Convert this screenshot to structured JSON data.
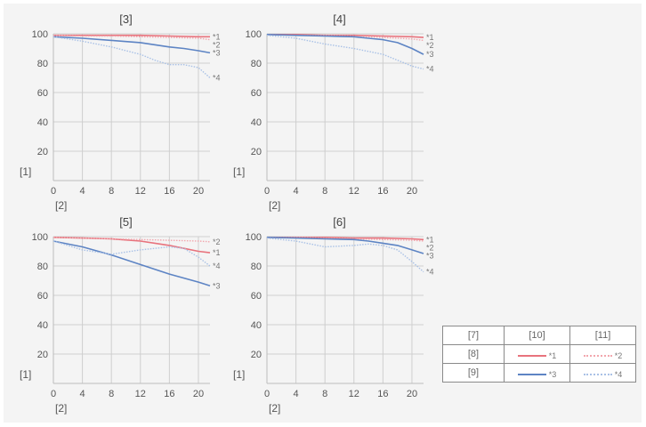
{
  "colors": {
    "s1": "#e8737d",
    "s2": "#f2a6ad",
    "s3": "#5d84c4",
    "s4": "#a9c1e6",
    "grid": "#cfcfcf",
    "frame": "#bdbdbd",
    "text": "#555555"
  },
  "chart_data": [
    {
      "type": "line",
      "title": "[3]",
      "ylabel": "[1]",
      "xlabel": "[2]",
      "xlim": [
        0,
        21.6
      ],
      "ylim": [
        0,
        100
      ],
      "xticks": [
        "0",
        "4",
        "8",
        "12",
        "16",
        "20"
      ],
      "yticks": [
        "20",
        "40",
        "60",
        "80",
        "100"
      ],
      "grid": true,
      "series": [
        {
          "name": "*1",
          "style": "solid",
          "color": "s1",
          "x": [
            0,
            4,
            8,
            12,
            16,
            20,
            21.6
          ],
          "y": [
            99,
            99,
            99,
            99,
            98.5,
            98,
            98
          ]
        },
        {
          "name": "*2",
          "style": "dotted",
          "color": "s2",
          "x": [
            0,
            4,
            8,
            12,
            16,
            20,
            21.6
          ],
          "y": [
            99,
            98.5,
            98.5,
            98,
            97.5,
            97,
            96
          ]
        },
        {
          "name": "*3",
          "style": "solid",
          "color": "s3",
          "x": [
            0,
            4,
            8,
            12,
            16,
            18,
            20,
            21.6
          ],
          "y": [
            98,
            97,
            95.5,
            94,
            91,
            90,
            88.5,
            87
          ]
        },
        {
          "name": "*4",
          "style": "dotted",
          "color": "s4",
          "x": [
            0,
            4,
            8,
            12,
            14,
            16,
            18,
            20,
            21.6
          ],
          "y": [
            98,
            95,
            91,
            86,
            82,
            79,
            79,
            77,
            70
          ]
        }
      ]
    },
    {
      "type": "line",
      "title": "[4]",
      "ylabel": "[1]",
      "xlabel": "[2]",
      "xlim": [
        0,
        21.6
      ],
      "ylim": [
        0,
        100
      ],
      "xticks": [
        "0",
        "4",
        "8",
        "12",
        "16",
        "20"
      ],
      "yticks": [
        "20",
        "40",
        "60",
        "80",
        "100"
      ],
      "grid": true,
      "series": [
        {
          "name": "*1",
          "style": "solid",
          "color": "s1",
          "x": [
            0,
            4,
            8,
            12,
            16,
            20,
            21.6
          ],
          "y": [
            99.5,
            99.5,
            99,
            99,
            98.5,
            98,
            97.5
          ]
        },
        {
          "name": "*2",
          "style": "dotted",
          "color": "s2",
          "x": [
            0,
            4,
            8,
            12,
            16,
            20,
            21.6
          ],
          "y": [
            99.5,
            99,
            99,
            98.5,
            97.5,
            96.5,
            95.5
          ]
        },
        {
          "name": "*3",
          "style": "solid",
          "color": "s3",
          "x": [
            0,
            4,
            8,
            12,
            14,
            16,
            18,
            20,
            21.6
          ],
          "y": [
            99.5,
            99,
            98.5,
            98,
            97,
            96,
            94,
            90,
            86
          ]
        },
        {
          "name": "*4",
          "style": "dotted",
          "color": "s4",
          "x": [
            0,
            4,
            8,
            12,
            14,
            16,
            18,
            20,
            21.6
          ],
          "y": [
            99,
            97,
            93,
            90,
            88,
            86,
            82,
            78,
            76
          ]
        }
      ]
    },
    {
      "type": "line",
      "title": "[5]",
      "ylabel": "[1]",
      "xlabel": "[2]",
      "xlim": [
        0,
        21.6
      ],
      "ylim": [
        0,
        100
      ],
      "xticks": [
        "0",
        "4",
        "8",
        "12",
        "16",
        "20"
      ],
      "yticks": [
        "20",
        "40",
        "60",
        "80",
        "100"
      ],
      "grid": true,
      "series": [
        {
          "name": "*1",
          "style": "solid",
          "color": "s1",
          "x": [
            0,
            4,
            8,
            12,
            14,
            16,
            18,
            20,
            21.6
          ],
          "y": [
            99.5,
            99,
            98.5,
            97,
            95.5,
            94,
            92,
            90,
            89
          ]
        },
        {
          "name": "*2",
          "style": "dotted",
          "color": "s2",
          "x": [
            0,
            4,
            8,
            12,
            16,
            20,
            21.6
          ],
          "y": [
            99.5,
            99,
            98.5,
            98,
            97.5,
            97,
            96.5
          ]
        },
        {
          "name": "*3",
          "style": "solid",
          "color": "s3",
          "x": [
            0,
            4,
            8,
            12,
            16,
            20,
            21.6
          ],
          "y": [
            97,
            93,
            87.5,
            81,
            74.5,
            69,
            66.5
          ]
        },
        {
          "name": "*4",
          "style": "dotted",
          "color": "s4",
          "x": [
            0,
            4,
            8,
            12,
            14,
            16,
            18,
            20,
            21.6
          ],
          "y": [
            97,
            91,
            88,
            91,
            92,
            93,
            92,
            86,
            80
          ]
        }
      ]
    },
    {
      "type": "line",
      "title": "[6]",
      "ylabel": "[1]",
      "xlabel": "[2]",
      "xlim": [
        0,
        21.6
      ],
      "ylim": [
        0,
        100
      ],
      "xticks": [
        "0",
        "4",
        "8",
        "12",
        "16",
        "20"
      ],
      "yticks": [
        "20",
        "40",
        "60",
        "80",
        "100"
      ],
      "grid": true,
      "series": [
        {
          "name": "*1",
          "style": "solid",
          "color": "s1",
          "x": [
            0,
            4,
            8,
            12,
            16,
            20,
            21.6
          ],
          "y": [
            99.5,
            99.5,
            99.5,
            99,
            99,
            98.5,
            98
          ]
        },
        {
          "name": "*2",
          "style": "dotted",
          "color": "s2",
          "x": [
            0,
            4,
            8,
            12,
            16,
            20,
            21.6
          ],
          "y": [
            99.5,
            99.5,
            99,
            98.5,
            98,
            97.5,
            97
          ]
        },
        {
          "name": "*3",
          "style": "solid",
          "color": "s3",
          "x": [
            0,
            4,
            8,
            12,
            14,
            16,
            18,
            20,
            21.6
          ],
          "y": [
            99.5,
            99,
            98.5,
            98,
            97,
            95.5,
            94,
            91,
            88.5
          ]
        },
        {
          "name": "*4",
          "style": "dotted",
          "color": "s4",
          "x": [
            0,
            4,
            8,
            12,
            14,
            16,
            18,
            20,
            21.6
          ],
          "y": [
            99,
            97,
            93,
            94,
            95,
            94,
            91,
            83,
            76
          ]
        }
      ]
    }
  ],
  "legend": {
    "h0": "[7]",
    "h1": "[10]",
    "h2": "[11]",
    "r1": "[8]",
    "r2": "[9]",
    "s1": "*1",
    "s2": "*2",
    "s3": "*3",
    "s4": "*4"
  }
}
